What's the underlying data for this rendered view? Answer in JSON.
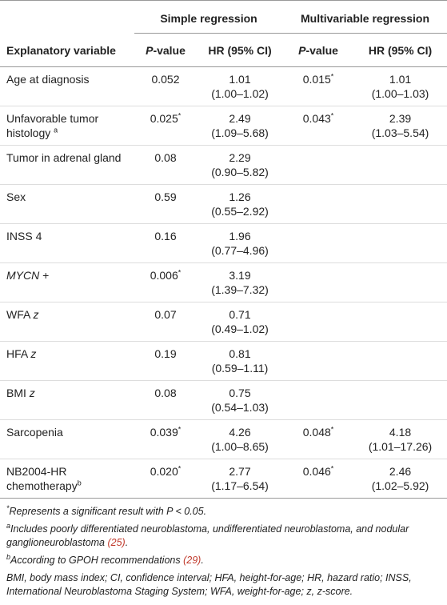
{
  "table": {
    "groups": [
      "Simple regression",
      "Multivariable regression"
    ],
    "columns": [
      [
        {
          "text": "Explanatory variable"
        }
      ],
      [
        {
          "text": "P",
          "style": "italic"
        },
        {
          "text": "-value"
        }
      ],
      [
        {
          "text": "HR (95% CI)"
        }
      ],
      [
        {
          "text": "P",
          "style": "italic"
        },
        {
          "text": "-value"
        }
      ],
      [
        {
          "text": "HR (95% CI)"
        }
      ]
    ],
    "rows": [
      [
        [
          {
            "text": "Age at diagnosis"
          }
        ],
        [
          {
            "text": "0.052"
          }
        ],
        [
          {
            "text": "1.01"
          },
          {
            "text": "(1.00–1.02)",
            "style": "block"
          }
        ],
        [
          {
            "text": "0.015"
          },
          {
            "text": "*",
            "style": "sup"
          }
        ],
        [
          {
            "text": "1.01"
          },
          {
            "text": "(1.00–1.03)",
            "style": "block"
          }
        ]
      ],
      [
        [
          {
            "text": "Unfavorable tumor histology "
          },
          {
            "text": "a",
            "style": "sup"
          }
        ],
        [
          {
            "text": "0.025"
          },
          {
            "text": "*",
            "style": "sup"
          }
        ],
        [
          {
            "text": "2.49"
          },
          {
            "text": "(1.09–5.68)",
            "style": "block"
          }
        ],
        [
          {
            "text": "0.043"
          },
          {
            "text": "*",
            "style": "sup"
          }
        ],
        [
          {
            "text": "2.39"
          },
          {
            "text": "(1.03–5.54)",
            "style": "block"
          }
        ]
      ],
      [
        [
          {
            "text": "Tumor in adrenal gland"
          }
        ],
        [
          {
            "text": "0.08"
          }
        ],
        [
          {
            "text": "2.29"
          },
          {
            "text": "(0.90–5.82)",
            "style": "block"
          }
        ],
        null,
        null
      ],
      [
        [
          {
            "text": "Sex"
          }
        ],
        [
          {
            "text": "0.59"
          }
        ],
        [
          {
            "text": "1.26"
          },
          {
            "text": "(0.55–2.92)",
            "style": "block"
          }
        ],
        null,
        null
      ],
      [
        [
          {
            "text": "INSS 4"
          }
        ],
        [
          {
            "text": "0.16"
          }
        ],
        [
          {
            "text": "1.96"
          },
          {
            "text": "(0.77–4.96)",
            "style": "block"
          }
        ],
        null,
        null
      ],
      [
        [
          {
            "text": "MYCN",
            "style": "italic"
          },
          {
            "text": " +"
          }
        ],
        [
          {
            "text": "0.006"
          },
          {
            "text": "*",
            "style": "sup"
          }
        ],
        [
          {
            "text": "3.19"
          },
          {
            "text": "(1.39–7.32)",
            "style": "block"
          }
        ],
        null,
        null
      ],
      [
        [
          {
            "text": "WFA "
          },
          {
            "text": "z",
            "style": "italic"
          }
        ],
        [
          {
            "text": "0.07"
          }
        ],
        [
          {
            "text": "0.71"
          },
          {
            "text": "(0.49–1.02)",
            "style": "block"
          }
        ],
        null,
        null
      ],
      [
        [
          {
            "text": "HFA "
          },
          {
            "text": "z",
            "style": "italic"
          }
        ],
        [
          {
            "text": "0.19"
          }
        ],
        [
          {
            "text": "0.81"
          },
          {
            "text": "(0.59–1.11)",
            "style": "block"
          }
        ],
        null,
        null
      ],
      [
        [
          {
            "text": "BMI "
          },
          {
            "text": "z",
            "style": "italic"
          }
        ],
        [
          {
            "text": "0.08"
          }
        ],
        [
          {
            "text": "0.75"
          },
          {
            "text": "(0.54–1.03)",
            "style": "block"
          }
        ],
        null,
        null
      ],
      [
        [
          {
            "text": "Sarcopenia"
          }
        ],
        [
          {
            "text": "0.039"
          },
          {
            "text": "*",
            "style": "sup"
          }
        ],
        [
          {
            "text": "4.26"
          },
          {
            "text": "(1.00–8.65)",
            "style": "block"
          }
        ],
        [
          {
            "text": "0.048"
          },
          {
            "text": "*",
            "style": "sup"
          }
        ],
        [
          {
            "text": "4.18"
          },
          {
            "text": "(1.01–17.26)",
            "style": "block"
          }
        ]
      ],
      [
        [
          {
            "text": "NB2004-HR chemotherapy"
          },
          {
            "text": "b",
            "style": "sup"
          }
        ],
        [
          {
            "text": "0.020"
          },
          {
            "text": "*",
            "style": "sup"
          }
        ],
        [
          {
            "text": "2.77"
          },
          {
            "text": "(1.17–6.54)",
            "style": "block"
          }
        ],
        [
          {
            "text": "0.046"
          },
          {
            "text": "*",
            "style": "sup"
          }
        ],
        [
          {
            "text": "2.46"
          },
          {
            "text": "(1.02–5.92)",
            "style": "block"
          }
        ]
      ]
    ],
    "footnotes": [
      [
        {
          "text": "*",
          "style": "sup"
        },
        {
          "text": "Represents a significant result with "
        },
        {
          "text": "P",
          "style": "italic"
        },
        {
          "text": " < 0.05."
        }
      ],
      [
        {
          "text": "a",
          "style": "sup"
        },
        {
          "text": "Includes poorly differentiated neuroblastoma, undifferentiated neuroblastoma, and nodular ganglioneuroblastoma "
        },
        {
          "text": "(25)",
          "style": "link"
        },
        {
          "text": "."
        }
      ],
      [
        {
          "text": "b",
          "style": "sup"
        },
        {
          "text": "According to GPOH recommendations "
        },
        {
          "text": "(29)",
          "style": "link"
        },
        {
          "text": "."
        }
      ],
      [
        {
          "text": "BMI, body mass index; CI, confidence interval; HFA, height-for-age; HR, hazard ratio; INSS, International Neuroblastoma Staging System; WFA, weight-for-age; z, z-score."
        }
      ]
    ]
  }
}
